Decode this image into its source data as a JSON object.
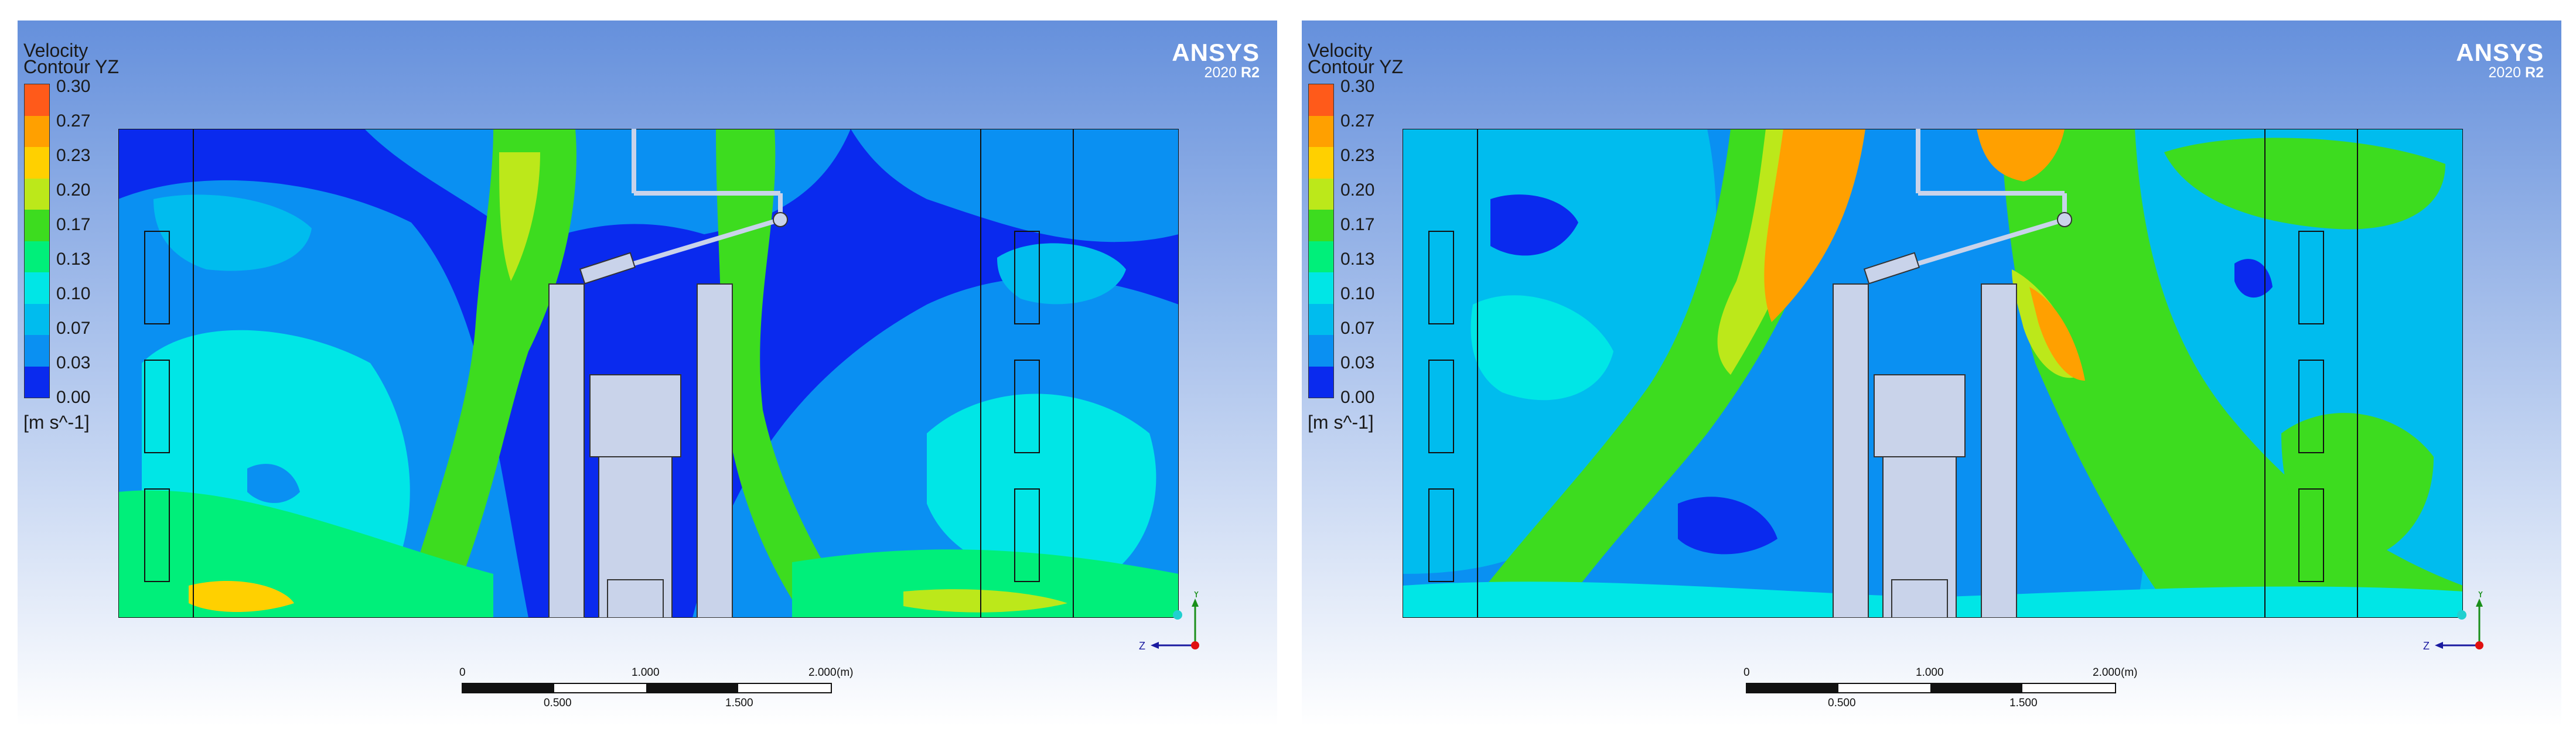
{
  "panels": [
    {
      "id": "left",
      "legend": {
        "title_line1": "Velocity",
        "title_line2": "Contour YZ",
        "ticks": [
          "0.30",
          "0.27",
          "0.23",
          "0.20",
          "0.17",
          "0.13",
          "0.10",
          "0.07",
          "0.03",
          "0.00"
        ],
        "unit": "[m s^-1]",
        "colors": [
          "#ff5a1a",
          "#ffa000",
          "#ffd000",
          "#bce81a",
          "#3ddc1f",
          "#00ef7a",
          "#00e6e6",
          "#00bcee",
          "#0a90f2",
          "#0a2aee"
        ]
      },
      "logo": {
        "name": "ANSYS",
        "version": "2020",
        "release": "R2"
      },
      "scale": {
        "l0": "0",
        "l1": "1.000",
        "l2": "2.000",
        "unit": "(m)",
        "l05": "0.500",
        "l15": "1.500"
      },
      "axes": {
        "y": "Y",
        "z": "Z"
      },
      "field_min": 0.0,
      "field_max": 0.3
    },
    {
      "id": "right",
      "legend": {
        "title_line1": "Velocity",
        "title_line2": "Contour YZ",
        "ticks": [
          "0.30",
          "0.27",
          "0.23",
          "0.20",
          "0.17",
          "0.13",
          "0.10",
          "0.07",
          "0.03",
          "0.00"
        ],
        "unit": "[m s^-1]",
        "colors": [
          "#ff5a1a",
          "#ffa000",
          "#ffd000",
          "#bce81a",
          "#3ddc1f",
          "#00ef7a",
          "#00e6e6",
          "#00bcee",
          "#0a90f2",
          "#0a2aee"
        ]
      },
      "logo": {
        "name": "ANSYS",
        "version": "2020",
        "release": "R2"
      },
      "scale": {
        "l0": "0",
        "l1": "1.000",
        "l2": "2.000",
        "unit": "(m)",
        "l05": "0.500",
        "l15": "1.500"
      },
      "axes": {
        "y": "Y",
        "z": "Z"
      },
      "field_min": 0.0,
      "field_max": 0.3
    }
  ]
}
